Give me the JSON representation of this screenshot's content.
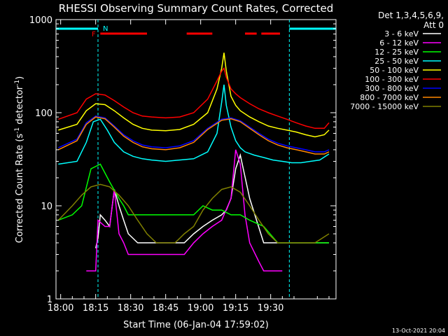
{
  "chart_data": {
    "type": "line",
    "title": "RHESSI Observing Summary Count Rates, Corrected",
    "xlabel": "Start Time (06-Jan-04 17:59:02)",
    "ylabel": "Corrected Count Rate (s",
    "ylabel_sup1": "-1",
    "ylabel_mid": " detector",
    "ylabel_sup2": "-1",
    "ylabel_end": ")",
    "ylog": true,
    "ylim": [
      1,
      1000
    ],
    "xlim_min": [
      -1,
      119
    ],
    "x_ticks": [
      "18:00",
      "18:15",
      "18:30",
      "18:45",
      "19:00",
      "19:15",
      "19:30"
    ],
    "y_ticks": [
      "1",
      "10",
      "100",
      "1000"
    ],
    "legend": {
      "position": "right",
      "header1": "Det 1,3,4,5,6,9,",
      "header2": "Att 0"
    },
    "series": [
      {
        "name": "3 - 6 keV",
        "color": "#ffffff",
        "x": [
          0,
          16,
          17,
          18,
          20,
          22,
          24,
          26,
          28,
          30,
          34,
          40,
          46,
          50,
          54,
          58,
          62,
          66,
          70,
          72,
          74,
          76,
          78,
          82,
          88,
          94,
          98,
          104,
          110,
          116
        ],
        "values": [
          null,
          3.5,
          4.5,
          8,
          7,
          6,
          15,
          10,
          7,
          5,
          4,
          4,
          4,
          4,
          4,
          5,
          6,
          7,
          8,
          9,
          12,
          25,
          35,
          12,
          4,
          4,
          4,
          4,
          4,
          4
        ]
      },
      {
        "name": "6 - 12 keV",
        "color": "#ff00ff",
        "x": [
          0,
          12,
          15,
          16,
          17,
          20,
          22,
          24,
          26,
          28,
          30,
          34,
          40,
          46,
          50,
          54,
          58,
          62,
          66,
          70,
          74,
          76,
          78,
          80,
          82,
          86,
          88,
          92,
          96,
          100,
          110,
          116
        ],
        "values": [
          null,
          2,
          2,
          2,
          7,
          6,
          6,
          15,
          5,
          4,
          3,
          3,
          3,
          3,
          3,
          3,
          4,
          5,
          6,
          7,
          12,
          40,
          28,
          8,
          4,
          2.5,
          2,
          2,
          2,
          null,
          null,
          null
        ]
      },
      {
        "name": "12 - 25 keV",
        "color": "#00ff00",
        "x": [
          0,
          6,
          10,
          14,
          18,
          22,
          26,
          28,
          30,
          34,
          40,
          46,
          50,
          54,
          58,
          62,
          66,
          70,
          74,
          76,
          78,
          82,
          88,
          94,
          100,
          108,
          116
        ],
        "values": [
          7,
          8,
          10,
          25,
          28,
          18,
          12,
          10,
          8,
          8,
          8,
          8,
          8,
          8,
          8,
          10,
          9,
          9,
          8,
          8,
          8,
          7,
          6,
          4,
          4,
          4,
          4
        ]
      },
      {
        "name": "25 - 50 keV",
        "color": "#00ffff",
        "x": [
          0,
          8,
          12,
          15,
          18,
          21,
          24,
          28,
          32,
          36,
          40,
          46,
          52,
          58,
          64,
          68,
          70,
          71,
          72,
          74,
          76,
          78,
          80,
          84,
          88,
          92,
          96,
          100,
          104,
          108,
          112,
          116
        ],
        "values": [
          28,
          30,
          48,
          80,
          85,
          65,
          48,
          38,
          34,
          32,
          31,
          30,
          31,
          32,
          38,
          60,
          130,
          200,
          120,
          70,
          50,
          42,
          38,
          35,
          33,
          31,
          30,
          29,
          29,
          30,
          31,
          36
        ]
      },
      {
        "name": "50 - 100 keV",
        "color": "#ffff00",
        "x": [
          0,
          8,
          12,
          16,
          20,
          24,
          28,
          32,
          36,
          40,
          46,
          52,
          58,
          64,
          68,
          70,
          71,
          72,
          74,
          76,
          78,
          82,
          86,
          90,
          94,
          98,
          102,
          106,
          110,
          114,
          116
        ],
        "values": [
          65,
          75,
          105,
          125,
          122,
          105,
          88,
          75,
          68,
          65,
          64,
          66,
          75,
          100,
          180,
          300,
          440,
          280,
          150,
          120,
          105,
          90,
          80,
          72,
          68,
          65,
          62,
          58,
          55,
          58,
          65
        ]
      },
      {
        "name": "100 - 300 keV",
        "color": "#ff0000",
        "x": [
          0,
          8,
          12,
          16,
          20,
          24,
          28,
          32,
          36,
          40,
          46,
          52,
          58,
          64,
          68,
          70,
          71,
          72,
          74,
          76,
          78,
          82,
          86,
          90,
          94,
          98,
          102,
          106,
          110,
          114,
          116
        ],
        "values": [
          85,
          100,
          140,
          160,
          155,
          135,
          115,
          100,
          92,
          90,
          88,
          90,
          100,
          140,
          220,
          280,
          300,
          240,
          180,
          160,
          145,
          125,
          110,
          100,
          92,
          85,
          78,
          72,
          68,
          68,
          78
        ]
      },
      {
        "name": "300 - 800 keV",
        "color": "#0000ff",
        "x": [
          0,
          8,
          12,
          16,
          20,
          24,
          28,
          32,
          36,
          40,
          46,
          52,
          58,
          64,
          70,
          74,
          78,
          82,
          86,
          90,
          94,
          98,
          102,
          106,
          110,
          114,
          116
        ],
        "values": [
          42,
          52,
          78,
          92,
          88,
          72,
          58,
          50,
          45,
          43,
          42,
          44,
          50,
          68,
          85,
          88,
          82,
          70,
          60,
          52,
          47,
          44,
          42,
          40,
          38,
          38,
          40
        ]
      },
      {
        "name": "800 - 7000 keV",
        "color": "#ff8800",
        "x": [
          0,
          8,
          12,
          16,
          20,
          24,
          28,
          32,
          36,
          40,
          46,
          52,
          58,
          64,
          70,
          74,
          78,
          82,
          86,
          90,
          94,
          98,
          102,
          106,
          110,
          114,
          116
        ],
        "values": [
          40,
          50,
          75,
          90,
          86,
          70,
          56,
          48,
          43,
          41,
          40,
          42,
          48,
          66,
          83,
          86,
          80,
          68,
          58,
          50,
          45,
          42,
          40,
          38,
          36,
          36,
          38
        ]
      },
      {
        "name": "7000 - 15000 keV",
        "color": "#808000",
        "x": [
          0,
          6,
          10,
          14,
          18,
          22,
          26,
          30,
          34,
          38,
          42,
          46,
          50,
          54,
          58,
          62,
          66,
          70,
          74,
          78,
          82,
          86,
          90,
          94,
          98,
          102,
          106,
          110,
          116
        ],
        "values": [
          7,
          10,
          13,
          16,
          17,
          16,
          13,
          10,
          7,
          5,
          4,
          4,
          4,
          5,
          6,
          9,
          12,
          15,
          16,
          14,
          10,
          7,
          5,
          4,
          4,
          4,
          4,
          4,
          5
        ]
      }
    ],
    "flags": {
      "saa_label": "N",
      "flare_label": "F",
      "night_bars": [
        [
          -1,
          17
        ],
        [
          99,
          119
        ]
      ],
      "flare_bars": [
        [
          18,
          38
        ],
        [
          55,
          66
        ],
        [
          80,
          85
        ],
        [
          87,
          95
        ]
      ]
    },
    "footer_date": "13-Oct-2021 20:04"
  }
}
